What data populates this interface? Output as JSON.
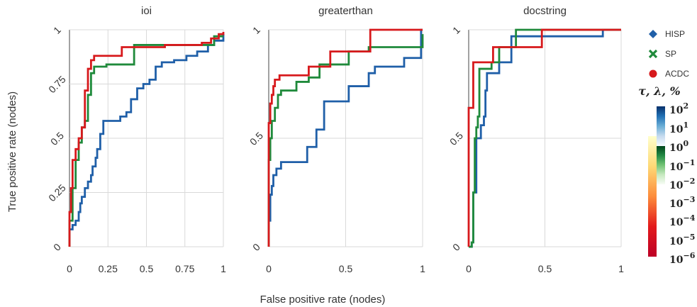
{
  "chart_data": {
    "type": "line",
    "xlabel": "False positive rate (nodes)",
    "ylabel": "True positive rate (nodes)",
    "legend": {
      "placement": "right",
      "entries": [
        {
          "name": "HISP",
          "marker": "diamond",
          "color": "#1f5fa8"
        },
        {
          "name": "SP",
          "marker": "x",
          "color": "#1f8a3b"
        },
        {
          "name": "ACDC",
          "marker": "circle",
          "color": "#d7191c"
        }
      ]
    },
    "colorbar": {
      "title": "τ, λ, %",
      "labels": [
        "10^2",
        "10^1",
        "10^0",
        "10^−1",
        "10^−2",
        "10^−3",
        "10^−4",
        "10^−5",
        "10^−6"
      ],
      "scales": [
        {
          "name": "Blues",
          "colors": [
            "#f7fbff",
            "#c6dbef",
            "#6baed6",
            "#2171b5",
            "#08306b"
          ]
        },
        {
          "name": "Greens",
          "colors": [
            "#f7fcf5",
            "#c7e9c0",
            "#74c476",
            "#238b45",
            "#00441b"
          ]
        },
        {
          "name": "YlOrRd",
          "colors": [
            "#ffffcc",
            "#fed976",
            "#fd8d3c",
            "#e31a1c",
            "#bd0026"
          ]
        }
      ]
    },
    "panels": [
      {
        "title": "ioi",
        "xlim": [
          0,
          1
        ],
        "ylim": [
          0,
          1
        ],
        "xticks": [
          0,
          0.25,
          0.5,
          0.75,
          1
        ],
        "xticklabels": [
          "0",
          "0.25",
          "0.5",
          "0.75",
          "1"
        ],
        "yticks": [
          0,
          0.25,
          0.5,
          0.75,
          1
        ],
        "yticklabels": [
          "0",
          "0.25",
          "0.5",
          "0.75",
          "1"
        ],
        "series": [
          {
            "name": "HISP",
            "color": "#1f5fa8",
            "points": [
              [
                0,
                0
              ],
              [
                0,
                0.08
              ],
              [
                0.02,
                0.1
              ],
              [
                0.04,
                0.12
              ],
              [
                0.06,
                0.16
              ],
              [
                0.07,
                0.2
              ],
              [
                0.08,
                0.23
              ],
              [
                0.1,
                0.27
              ],
              [
                0.12,
                0.3
              ],
              [
                0.14,
                0.33
              ],
              [
                0.15,
                0.37
              ],
              [
                0.17,
                0.41
              ],
              [
                0.18,
                0.45
              ],
              [
                0.2,
                0.52
              ],
              [
                0.22,
                0.58
              ],
              [
                0.33,
                0.6
              ],
              [
                0.37,
                0.62
              ],
              [
                0.4,
                0.68
              ],
              [
                0.44,
                0.73
              ],
              [
                0.48,
                0.75
              ],
              [
                0.52,
                0.77
              ],
              [
                0.56,
                0.83
              ],
              [
                0.6,
                0.85
              ],
              [
                0.68,
                0.86
              ],
              [
                0.76,
                0.88
              ],
              [
                0.83,
                0.9
              ],
              [
                0.9,
                0.93
              ],
              [
                0.94,
                0.95
              ],
              [
                1,
                0.98
              ]
            ]
          },
          {
            "name": "SP",
            "color": "#1f8a3b",
            "points": [
              [
                0,
                0
              ],
              [
                0,
                0.12
              ],
              [
                0.02,
                0.27
              ],
              [
                0.04,
                0.4
              ],
              [
                0.06,
                0.48
              ],
              [
                0.08,
                0.55
              ],
              [
                0.1,
                0.58
              ],
              [
                0.12,
                0.7
              ],
              [
                0.14,
                0.8
              ],
              [
                0.16,
                0.83
              ],
              [
                0.24,
                0.83
              ],
              [
                0.24,
                0.84
              ],
              [
                0.42,
                0.84
              ],
              [
                0.42,
                0.93
              ],
              [
                0.94,
                0.93
              ],
              [
                0.94,
                0.97
              ],
              [
                1,
                0.97
              ]
            ]
          },
          {
            "name": "ACDC",
            "color": "#d7191c",
            "points": [
              [
                0,
                0
              ],
              [
                0,
                0.16
              ],
              [
                0.01,
                0.27
              ],
              [
                0.02,
                0.4
              ],
              [
                0.04,
                0.45
              ],
              [
                0.06,
                0.5
              ],
              [
                0.08,
                0.55
              ],
              [
                0.1,
                0.6
              ],
              [
                0.1,
                0.72
              ],
              [
                0.12,
                0.82
              ],
              [
                0.14,
                0.86
              ],
              [
                0.16,
                0.88
              ],
              [
                0.3,
                0.88
              ],
              [
                0.34,
                0.92
              ],
              [
                0.5,
                0.92
              ],
              [
                0.62,
                0.93
              ],
              [
                0.86,
                0.94
              ],
              [
                0.92,
                0.96
              ],
              [
                0.97,
                0.98
              ],
              [
                1,
                0.99
              ]
            ]
          }
        ]
      },
      {
        "title": "greaterthan",
        "xlim": [
          0,
          1
        ],
        "ylim": [
          0,
          1
        ],
        "xticks": [
          0,
          0.5,
          1
        ],
        "xticklabels": [
          "0",
          "0.5",
          "1"
        ],
        "yticks": [
          0,
          0.5,
          1
        ],
        "yticklabels": [
          "0",
          "0.5",
          "1"
        ],
        "series": [
          {
            "name": "HISP",
            "color": "#1f5fa8",
            "points": [
              [
                0,
                0
              ],
              [
                0,
                0.12
              ],
              [
                0.01,
                0.24
              ],
              [
                0.02,
                0.28
              ],
              [
                0.03,
                0.33
              ],
              [
                0.05,
                0.36
              ],
              [
                0.08,
                0.39
              ],
              [
                0.25,
                0.39
              ],
              [
                0.25,
                0.46
              ],
              [
                0.31,
                0.46
              ],
              [
                0.31,
                0.54
              ],
              [
                0.36,
                0.54
              ],
              [
                0.36,
                0.67
              ],
              [
                0.52,
                0.67
              ],
              [
                0.52,
                0.74
              ],
              [
                0.65,
                0.74
              ],
              [
                0.65,
                0.8
              ],
              [
                0.69,
                0.8
              ],
              [
                0.69,
                0.83
              ],
              [
                0.88,
                0.83
              ],
              [
                0.88,
                0.87
              ],
              [
                0.99,
                0.87
              ],
              [
                0.99,
                1
              ],
              [
                1,
                1
              ]
            ]
          },
          {
            "name": "SP",
            "color": "#1f8a3b",
            "points": [
              [
                0,
                0
              ],
              [
                0,
                0.4
              ],
              [
                0.01,
                0.5
              ],
              [
                0.02,
                0.58
              ],
              [
                0.04,
                0.64
              ],
              [
                0.06,
                0.7
              ],
              [
                0.08,
                0.72
              ],
              [
                0.18,
                0.72
              ],
              [
                0.18,
                0.76
              ],
              [
                0.26,
                0.76
              ],
              [
                0.26,
                0.78
              ],
              [
                0.33,
                0.78
              ],
              [
                0.33,
                0.84
              ],
              [
                0.52,
                0.84
              ],
              [
                0.52,
                0.9
              ],
              [
                0.65,
                0.9
              ],
              [
                0.65,
                0.92
              ],
              [
                1,
                0.92
              ],
              [
                1,
                0.98
              ]
            ]
          },
          {
            "name": "ACDC",
            "color": "#d7191c",
            "points": [
              [
                0,
                0
              ],
              [
                0,
                0.57
              ],
              [
                0.01,
                0.66
              ],
              [
                0.02,
                0.7
              ],
              [
                0.03,
                0.74
              ],
              [
                0.04,
                0.77
              ],
              [
                0.07,
                0.79
              ],
              [
                0.26,
                0.79
              ],
              [
                0.26,
                0.83
              ],
              [
                0.4,
                0.83
              ],
              [
                0.4,
                0.9
              ],
              [
                0.66,
                0.9
              ],
              [
                0.66,
                1
              ],
              [
                1,
                1
              ]
            ]
          }
        ]
      },
      {
        "title": "docstring",
        "xlim": [
          0,
          1
        ],
        "ylim": [
          0,
          1
        ],
        "xticks": [
          0,
          0.5,
          1
        ],
        "xticklabels": [
          "0",
          "0.5",
          "1"
        ],
        "yticks": [
          0,
          0.5,
          1
        ],
        "yticklabels": [
          "0",
          "0.5",
          "1"
        ],
        "series": [
          {
            "name": "HISP",
            "color": "#1f5fa8",
            "points": [
              [
                0,
                0
              ],
              [
                0.02,
                0.02
              ],
              [
                0.03,
                0.25
              ],
              [
                0.05,
                0.5
              ],
              [
                0.07,
                0.5
              ],
              [
                0.08,
                0.56
              ],
              [
                0.1,
                0.6
              ],
              [
                0.11,
                0.72
              ],
              [
                0.12,
                0.8
              ],
              [
                0.2,
                0.8
              ],
              [
                0.2,
                0.85
              ],
              [
                0.28,
                0.85
              ],
              [
                0.28,
                0.97
              ],
              [
                0.88,
                0.97
              ],
              [
                0.88,
                1
              ],
              [
                1,
                1
              ]
            ]
          },
          {
            "name": "SP",
            "color": "#1f8a3b",
            "points": [
              [
                0,
                0
              ],
              [
                0.02,
                0.02
              ],
              [
                0.03,
                0.25
              ],
              [
                0.04,
                0.5
              ],
              [
                0.05,
                0.55
              ],
              [
                0.06,
                0.6
              ],
              [
                0.07,
                0.82
              ],
              [
                0.15,
                0.82
              ],
              [
                0.15,
                0.85
              ],
              [
                0.2,
                0.85
              ],
              [
                0.2,
                0.92
              ],
              [
                0.31,
                0.92
              ],
              [
                0.31,
                1
              ],
              [
                1,
                1
              ]
            ]
          },
          {
            "name": "ACDC",
            "color": "#d7191c",
            "points": [
              [
                0,
                0
              ],
              [
                0,
                0.64
              ],
              [
                0.03,
                0.64
              ],
              [
                0.03,
                0.85
              ],
              [
                0.16,
                0.85
              ],
              [
                0.16,
                0.92
              ],
              [
                0.48,
                0.92
              ],
              [
                0.48,
                1
              ],
              [
                1,
                1
              ]
            ]
          }
        ]
      }
    ]
  }
}
